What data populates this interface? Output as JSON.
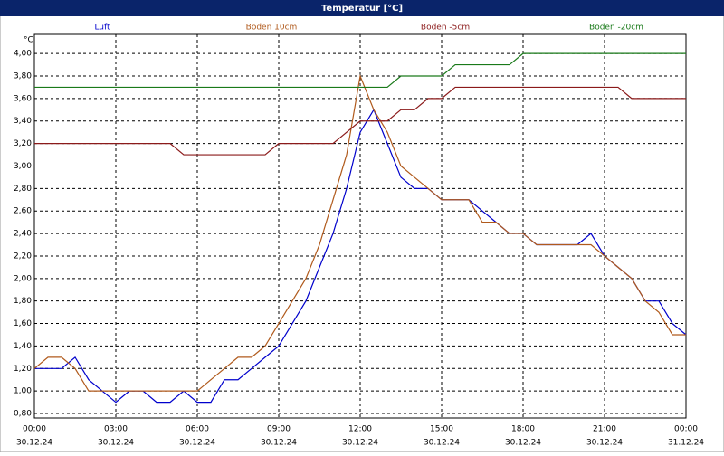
{
  "chart_data": {
    "type": "line",
    "title": "Temperatur [°C]",
    "y_unit": "°C",
    "x": [
      0,
      0.5,
      1,
      1.5,
      2,
      2.5,
      3,
      3.5,
      4,
      4.5,
      5,
      5.5,
      6,
      6.5,
      7,
      7.5,
      8,
      8.5,
      9,
      9.5,
      10,
      10.5,
      11,
      11.5,
      12,
      12.5,
      13,
      13.5,
      14,
      14.5,
      15,
      15.5,
      16,
      16.5,
      17,
      17.5,
      18,
      18.5,
      19,
      19.5,
      20,
      20.5,
      21,
      21.5,
      22,
      22.5,
      23,
      23.5,
      24
    ],
    "series": [
      {
        "name": "Luft",
        "color": "#0000cc",
        "values": [
          1.2,
          1.2,
          1.2,
          1.3,
          1.1,
          1.0,
          0.9,
          1.0,
          1.0,
          0.9,
          0.9,
          1.0,
          0.9,
          0.9,
          1.1,
          1.1,
          1.2,
          1.3,
          1.4,
          1.6,
          1.8,
          2.1,
          2.4,
          2.8,
          3.3,
          3.5,
          3.2,
          2.9,
          2.8,
          2.8,
          2.7,
          2.7,
          2.7,
          2.6,
          2.5,
          2.4,
          2.4,
          2.3,
          2.3,
          2.3,
          2.3,
          2.4,
          2.2,
          2.1,
          2.0,
          1.8,
          1.8,
          1.6,
          1.5
        ]
      },
      {
        "name": "Boden 10cm",
        "color": "#b05a1c",
        "values": [
          1.2,
          1.3,
          1.3,
          1.2,
          1.0,
          1.0,
          1.0,
          1.0,
          1.0,
          1.0,
          1.0,
          1.0,
          1.0,
          1.1,
          1.2,
          1.3,
          1.3,
          1.4,
          1.6,
          1.8,
          2.0,
          2.3,
          2.7,
          3.1,
          3.8,
          3.5,
          3.3,
          3.0,
          2.9,
          2.8,
          2.7,
          2.7,
          2.7,
          2.5,
          2.5,
          2.4,
          2.4,
          2.3,
          2.3,
          2.3,
          2.3,
          2.3,
          2.2,
          2.1,
          2.0,
          1.8,
          1.7,
          1.5,
          1.5
        ]
      },
      {
        "name": "Boden -5cm",
        "color": "#8b1a1a",
        "values": [
          3.2,
          3.2,
          3.2,
          3.2,
          3.2,
          3.2,
          3.2,
          3.2,
          3.2,
          3.2,
          3.2,
          3.1,
          3.1,
          3.1,
          3.1,
          3.1,
          3.1,
          3.1,
          3.2,
          3.2,
          3.2,
          3.2,
          3.2,
          3.3,
          3.4,
          3.4,
          3.4,
          3.5,
          3.5,
          3.6,
          3.6,
          3.7,
          3.7,
          3.7,
          3.7,
          3.7,
          3.7,
          3.7,
          3.7,
          3.7,
          3.7,
          3.7,
          3.7,
          3.7,
          3.6,
          3.6,
          3.6,
          3.6,
          3.6
        ]
      },
      {
        "name": "Boden -20cm",
        "color": "#1a7a1a",
        "values": [
          3.7,
          3.7,
          3.7,
          3.7,
          3.7,
          3.7,
          3.7,
          3.7,
          3.7,
          3.7,
          3.7,
          3.7,
          3.7,
          3.7,
          3.7,
          3.7,
          3.7,
          3.7,
          3.7,
          3.7,
          3.7,
          3.7,
          3.7,
          3.7,
          3.7,
          3.7,
          3.7,
          3.8,
          3.8,
          3.8,
          3.8,
          3.9,
          3.9,
          3.9,
          3.9,
          3.9,
          4.0,
          4.0,
          4.0,
          4.0,
          4.0,
          4.0,
          4.0,
          4.0,
          4.0,
          4.0,
          4.0,
          4.0,
          4.0
        ]
      }
    ],
    "xlim": [
      0,
      24
    ],
    "xticks": [
      {
        "value": 0,
        "label": "00:00"
      },
      {
        "value": 3,
        "label": "03:00"
      },
      {
        "value": 6,
        "label": "06:00"
      },
      {
        "value": 9,
        "label": "09:00"
      },
      {
        "value": 12,
        "label": "12:00"
      },
      {
        "value": 15,
        "label": "15:00"
      },
      {
        "value": 18,
        "label": "18:00"
      },
      {
        "value": 21,
        "label": "21:00"
      },
      {
        "value": 24,
        "label": "00:00"
      }
    ],
    "xtick_dates": [
      "30.12.24",
      "30.12.24",
      "30.12.24",
      "30.12.24",
      "30.12.24",
      "30.12.24",
      "30.12.24",
      "30.12.24",
      "31.12.24"
    ],
    "ylim": [
      0.76,
      4.17
    ],
    "yticks": [
      {
        "value": 0.8,
        "label": "0,80"
      },
      {
        "value": 1.0,
        "label": "1,00"
      },
      {
        "value": 1.2,
        "label": "1,20"
      },
      {
        "value": 1.4,
        "label": "1,40"
      },
      {
        "value": 1.6,
        "label": "1,60"
      },
      {
        "value": 1.8,
        "label": "1,80"
      },
      {
        "value": 2.0,
        "label": "2,00"
      },
      {
        "value": 2.2,
        "label": "2,20"
      },
      {
        "value": 2.4,
        "label": "2,40"
      },
      {
        "value": 2.6,
        "label": "2,60"
      },
      {
        "value": 2.8,
        "label": "2,80"
      },
      {
        "value": 3.0,
        "label": "3,00"
      },
      {
        "value": 3.2,
        "label": "3,20"
      },
      {
        "value": 3.4,
        "label": "3,40"
      },
      {
        "value": 3.6,
        "label": "3,60"
      },
      {
        "value": 3.8,
        "label": "3,80"
      },
      {
        "value": 4.0,
        "label": "4,00"
      }
    ],
    "grid": true
  }
}
